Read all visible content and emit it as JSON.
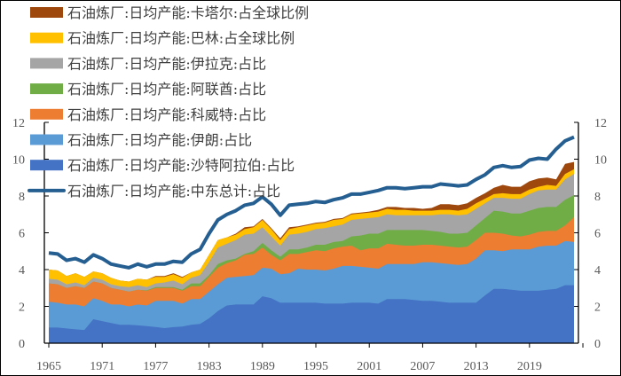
{
  "chart_data": {
    "type": "area",
    "stacked": true,
    "values_are_cumulative": true,
    "x_start": 1965,
    "x_end": 2024,
    "xticks": [
      "1965",
      "1971",
      "1977",
      "1983",
      "1989",
      "1995",
      "2001",
      "2007",
      "2013",
      "2019"
    ],
    "yticks_left": [
      "0",
      "2",
      "4",
      "6",
      "8",
      "10",
      "12"
    ],
    "yticks_right": [
      "0",
      "2",
      "4",
      "6",
      "8",
      "10",
      "12"
    ],
    "ylim": [
      0,
      12
    ],
    "legend_position": "top-left",
    "series": [
      {
        "name": "石油炼厂:日均产能:卡塔尔:占全球比例",
        "color": "#9E480E",
        "values": [
          4.0,
          3.95,
          3.65,
          3.8,
          3.6,
          3.9,
          3.8,
          3.55,
          3.4,
          3.35,
          3.5,
          3.45,
          3.65,
          3.65,
          3.8,
          3.6,
          3.85,
          4.0,
          4.8,
          5.6,
          5.75,
          5.95,
          6.3,
          6.35,
          6.75,
          6.25,
          5.7,
          6.3,
          6.35,
          6.45,
          6.55,
          6.6,
          6.75,
          6.8,
          7.05,
          7.1,
          7.15,
          7.25,
          7.4,
          7.4,
          7.35,
          7.35,
          7.3,
          7.35,
          7.55,
          7.55,
          7.5,
          7.6,
          7.9,
          8.15,
          8.45,
          8.6,
          8.5,
          8.5,
          8.8,
          8.95,
          9.0,
          8.9,
          9.75,
          9.85
        ]
      },
      {
        "name": "石油炼厂:日均产能:巴林:占全球比例",
        "color": "#FFC000",
        "values": [
          4.0,
          3.95,
          3.65,
          3.8,
          3.6,
          3.9,
          3.8,
          3.55,
          3.4,
          3.35,
          3.5,
          3.45,
          3.6,
          3.6,
          3.75,
          3.55,
          3.85,
          4.0,
          4.8,
          5.6,
          5.75,
          5.9,
          6.2,
          6.3,
          6.7,
          6.2,
          5.6,
          6.2,
          6.3,
          6.4,
          6.5,
          6.55,
          6.7,
          6.75,
          7.0,
          7.05,
          7.1,
          7.15,
          7.3,
          7.25,
          7.25,
          7.2,
          7.2,
          7.2,
          7.25,
          7.25,
          7.2,
          7.3,
          7.6,
          7.85,
          8.1,
          8.15,
          8.1,
          8.1,
          8.35,
          8.5,
          8.6,
          8.55,
          9.2,
          9.45
        ]
      },
      {
        "name": "石油炼厂:日均产能:伊拉克:占比",
        "color": "#A5A5A5",
        "values": [
          3.5,
          3.45,
          3.2,
          3.3,
          3.15,
          3.55,
          3.45,
          3.2,
          3.1,
          3.05,
          3.15,
          3.05,
          3.25,
          3.3,
          3.4,
          3.2,
          3.55,
          3.7,
          4.4,
          5.2,
          5.4,
          5.6,
          5.9,
          5.95,
          6.3,
          5.8,
          5.3,
          5.9,
          5.95,
          6.05,
          6.2,
          6.25,
          6.35,
          6.45,
          6.7,
          6.75,
          6.8,
          6.85,
          7.0,
          6.95,
          6.95,
          6.95,
          6.95,
          6.95,
          7.0,
          7.0,
          6.95,
          7.0,
          7.3,
          7.6,
          7.9,
          7.9,
          7.85,
          7.85,
          8.1,
          8.3,
          8.35,
          8.35,
          8.9,
          9.2
        ]
      },
      {
        "name": "石油炼厂:日均产能:阿联酋:占比",
        "color": "#70AD47",
        "values": [
          3.25,
          3.2,
          3.0,
          3.1,
          3.0,
          3.35,
          3.25,
          3.0,
          2.9,
          2.8,
          2.9,
          2.87,
          3.05,
          3.05,
          3.05,
          2.9,
          3.25,
          3.25,
          3.7,
          4.3,
          4.5,
          4.6,
          4.85,
          5.0,
          5.45,
          5.05,
          4.7,
          5.1,
          5.1,
          5.2,
          5.35,
          5.35,
          5.5,
          5.55,
          5.8,
          5.85,
          5.95,
          5.95,
          6.15,
          6.15,
          6.15,
          6.15,
          6.15,
          6.1,
          6.05,
          5.95,
          5.95,
          6.0,
          6.4,
          6.8,
          7.2,
          7.15,
          7.05,
          7.05,
          7.2,
          7.35,
          7.4,
          7.4,
          7.8,
          8.05
        ]
      },
      {
        "name": "石油炼厂:日均产能:科威特:占比",
        "color": "#ED7D31",
        "values": [
          3.25,
          3.2,
          3.0,
          3.1,
          3.0,
          3.35,
          3.25,
          3.0,
          2.9,
          2.8,
          2.9,
          2.85,
          3.0,
          3.0,
          3.0,
          2.85,
          3.1,
          3.1,
          3.6,
          4.1,
          4.35,
          4.5,
          4.8,
          4.85,
          5.2,
          4.8,
          4.5,
          4.85,
          4.85,
          4.95,
          5.05,
          5.0,
          5.15,
          5.25,
          5.3,
          5.05,
          5.15,
          5.15,
          5.4,
          5.35,
          5.3,
          5.3,
          5.35,
          5.35,
          5.3,
          5.25,
          5.2,
          5.25,
          5.6,
          6.0,
          6.0,
          5.95,
          5.85,
          5.8,
          5.9,
          6.05,
          6.1,
          6.1,
          6.4,
          6.85
        ]
      },
      {
        "name": "石油炼厂:日均产能:伊朗:占比",
        "color": "#5B9BD5",
        "values": [
          2.25,
          2.2,
          2.1,
          2.1,
          2.0,
          2.45,
          2.3,
          2.1,
          2.1,
          2.0,
          2.1,
          2.05,
          2.3,
          2.3,
          2.3,
          2.15,
          2.4,
          2.4,
          2.8,
          3.2,
          3.55,
          3.6,
          3.65,
          3.7,
          4.1,
          4.05,
          3.75,
          3.8,
          4.05,
          4.0,
          4.0,
          3.95,
          4.05,
          4.2,
          4.2,
          4.15,
          4.1,
          4.05,
          4.3,
          4.3,
          4.3,
          4.3,
          4.4,
          4.4,
          4.35,
          4.3,
          4.25,
          4.3,
          4.6,
          5.05,
          5.05,
          5.0,
          5.1,
          5.1,
          5.1,
          5.25,
          5.3,
          5.3,
          5.55,
          5.5
        ]
      },
      {
        "name": "石油炼厂:日均产能:沙特阿拉伯:占比",
        "color": "#4472C4",
        "values": [
          0.85,
          0.85,
          0.8,
          0.75,
          0.72,
          1.3,
          1.2,
          1.1,
          1.0,
          1.0,
          0.97,
          0.93,
          0.88,
          0.82,
          0.87,
          0.9,
          1.0,
          1.05,
          1.35,
          1.75,
          2.05,
          2.1,
          2.1,
          2.1,
          2.55,
          2.45,
          2.2,
          2.2,
          2.2,
          2.2,
          2.2,
          2.15,
          2.15,
          2.15,
          2.2,
          2.2,
          2.2,
          2.15,
          2.4,
          2.4,
          2.4,
          2.35,
          2.3,
          2.3,
          2.25,
          2.2,
          2.2,
          2.2,
          2.2,
          2.6,
          2.95,
          2.95,
          2.9,
          2.85,
          2.85,
          2.85,
          2.9,
          2.95,
          3.15,
          3.15
        ]
      }
    ],
    "line": {
      "name": "石油炼厂:日均产能:中东总计:占比",
      "color": "#255E91",
      "axis": "right",
      "values": [
        4.9,
        4.85,
        4.5,
        4.6,
        4.4,
        4.8,
        4.6,
        4.3,
        4.2,
        4.1,
        4.3,
        4.15,
        4.3,
        4.3,
        4.45,
        4.4,
        4.85,
        5.1,
        5.95,
        6.7,
        7.0,
        7.2,
        7.5,
        7.6,
        7.95,
        7.55,
        6.95,
        7.5,
        7.55,
        7.6,
        7.7,
        7.65,
        7.8,
        7.9,
        8.1,
        8.1,
        8.2,
        8.3,
        8.45,
        8.45,
        8.4,
        8.45,
        8.5,
        8.5,
        8.65,
        8.6,
        8.55,
        8.6,
        8.9,
        9.15,
        9.55,
        9.65,
        9.55,
        9.6,
        9.95,
        10.05,
        10.0,
        10.55,
        11.0,
        11.2
      ]
    },
    "legend_order": [
      "s0",
      "s1",
      "s2",
      "s3",
      "s4",
      "s5",
      "s6",
      "line"
    ]
  }
}
